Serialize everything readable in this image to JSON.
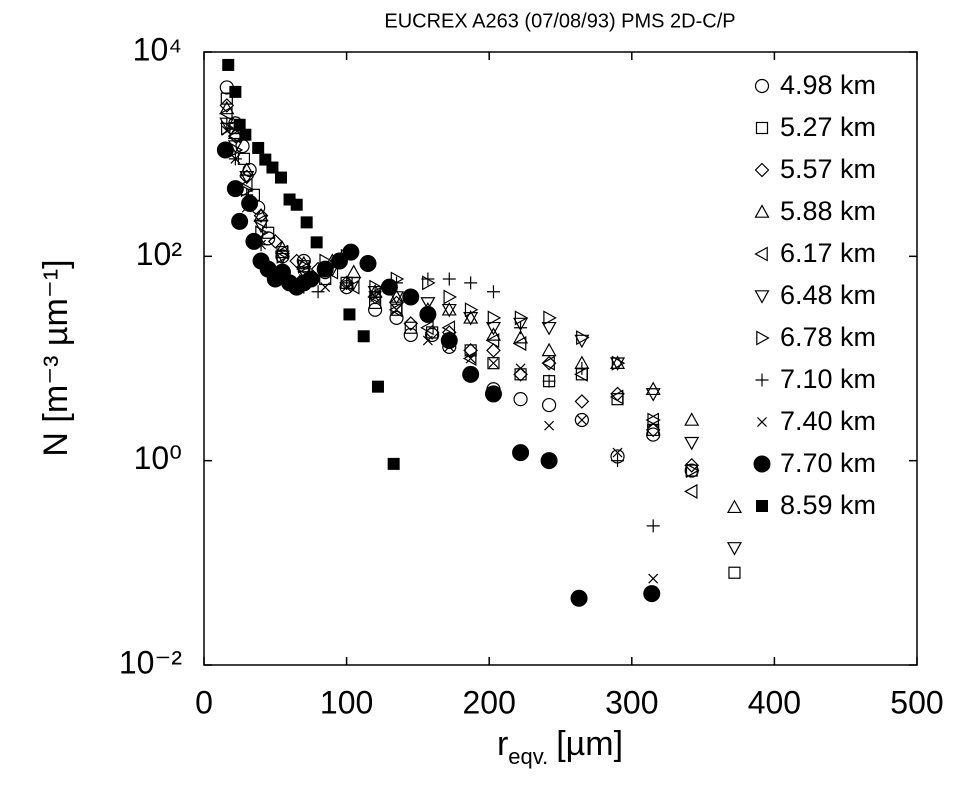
{
  "chart_data": {
    "type": "scatter",
    "title": "EUCREX A263 (07/08/93) PMS 2D-C/P",
    "x_label": {
      "text": "r",
      "subscript": "eqv.",
      "unit": "[µm]"
    },
    "y_label": "N [m⁻³ µm⁻¹]",
    "xlim": [
      0,
      500
    ],
    "xticks": [
      0,
      100,
      200,
      300,
      400,
      500
    ],
    "ylim": [
      0.01,
      10000
    ],
    "yticks": [
      {
        "value": 0.01,
        "label": "10⁻²"
      },
      {
        "value": 1,
        "label": "10⁰"
      },
      {
        "value": 100,
        "label": "10²"
      },
      {
        "value": 10000,
        "label": "10⁴"
      }
    ],
    "log_y": true,
    "grid": false,
    "legend": "upper right",
    "series": [
      {
        "name": "4.98 km",
        "marker": "circle-open",
        "color": "#000000",
        "x": [
          16,
          22,
          27,
          32,
          38,
          45,
          55,
          70,
          85,
          100,
          120,
          135,
          145,
          160,
          172,
          187,
          203,
          222,
          242,
          265,
          290,
          315,
          342
        ],
        "values": [
          4500,
          2000,
          1200,
          700,
          300,
          150,
          100,
          90,
          70,
          50,
          30,
          25,
          17,
          17,
          13,
          7,
          5,
          4,
          3.5,
          2.5,
          1.1,
          1.8,
          0.8
        ]
      },
      {
        "name": "5.27 km",
        "marker": "square-open",
        "color": "#000000",
        "x": [
          16,
          22,
          28,
          35,
          45,
          55,
          70,
          85,
          100,
          120,
          135,
          145,
          160,
          172,
          187,
          203,
          222,
          242,
          265,
          290,
          315,
          342,
          372
        ],
        "values": [
          3500,
          1800,
          900,
          400,
          170,
          110,
          80,
          60,
          55,
          35,
          30,
          20,
          18,
          15,
          12,
          9,
          7,
          6,
          7,
          4,
          2,
          0.8,
          0.08
        ]
      },
      {
        "name": "5.57 km",
        "marker": "diamond-open",
        "color": "#000000",
        "x": [
          16,
          22,
          30,
          40,
          50,
          65,
          80,
          100,
          120,
          135,
          145,
          160,
          172,
          187,
          203,
          222,
          242,
          265,
          290,
          315,
          342
        ],
        "values": [
          3000,
          1500,
          600,
          250,
          140,
          90,
          75,
          55,
          40,
          35,
          22,
          18,
          18,
          12,
          12,
          7,
          9,
          3.8,
          4.5,
          2,
          0.9
        ]
      },
      {
        "name": "5.88 km",
        "marker": "triangle-up-open",
        "color": "#000000",
        "x": [
          16,
          22,
          30,
          40,
          55,
          70,
          90,
          105,
          120,
          135,
          157,
          172,
          187,
          203,
          222,
          242,
          265,
          290,
          315,
          342,
          372
        ],
        "values": [
          2800,
          1600,
          700,
          250,
          120,
          85,
          90,
          70,
          45,
          40,
          30,
          30,
          25,
          17,
          16,
          12,
          9,
          9,
          5,
          2.5,
          0.35
        ]
      },
      {
        "name": "6.17 km",
        "marker": "triangle-left-open",
        "color": "#000000",
        "x": [
          16,
          22,
          30,
          40,
          55,
          70,
          90,
          105,
          120,
          135,
          157,
          172,
          187,
          203,
          222,
          242,
          265,
          290,
          315,
          342
        ],
        "values": [
          2500,
          1500,
          500,
          220,
          110,
          75,
          70,
          50,
          40,
          30,
          20,
          20,
          10,
          15,
          14,
          9,
          7,
          4.2,
          2.5,
          0.5
        ]
      },
      {
        "name": "6.48 km",
        "marker": "triangle-down-open",
        "color": "#000000",
        "x": [
          16,
          22,
          30,
          40,
          55,
          70,
          90,
          105,
          120,
          135,
          157,
          172,
          187,
          203,
          222,
          242,
          265,
          290,
          315,
          342,
          372
        ],
        "values": [
          2000,
          1200,
          600,
          200,
          100,
          70,
          75,
          55,
          45,
          40,
          35,
          30,
          25,
          20,
          22,
          20,
          15,
          9,
          4.5,
          1.5,
          0.14
        ]
      },
      {
        "name": "6.78 km",
        "marker": "triangle-right-open",
        "color": "#000000",
        "x": [
          16,
          22,
          30,
          40,
          55,
          70,
          85,
          100,
          120,
          135,
          157,
          172,
          187,
          203,
          222,
          242,
          265,
          290,
          315,
          342
        ],
        "values": [
          1800,
          1100,
          450,
          170,
          100,
          80,
          90,
          100,
          50,
          60,
          55,
          40,
          30,
          25,
          25,
          25,
          16,
          9,
          2.5,
          0.8
        ]
      },
      {
        "name": "7.10 km",
        "marker": "plus",
        "color": "#000000",
        "x": [
          16,
          22,
          30,
          40,
          55,
          70,
          80,
          100,
          120,
          135,
          157,
          172,
          187,
          203,
          222,
          242,
          265,
          290,
          315
        ],
        "values": [
          2000,
          900,
          400,
          130,
          70,
          50,
          45,
          55,
          45,
          55,
          60,
          60,
          55,
          45,
          20,
          6,
          8,
          1,
          0.23
        ]
      },
      {
        "name": "7.40 km",
        "marker": "x",
        "color": "#000000",
        "x": [
          16,
          22,
          30,
          40,
          55,
          70,
          85,
          100,
          120,
          135,
          157,
          172,
          187,
          203,
          222,
          242,
          265,
          290,
          315
        ],
        "values": [
          1700,
          900,
          300,
          130,
          70,
          60,
          50,
          50,
          40,
          30,
          15,
          13,
          10,
          9,
          8,
          2.2,
          2.5,
          1.2,
          0.07
        ]
      },
      {
        "name": "7.70 km",
        "marker": "circle-filled",
        "color": "#000000",
        "x": [
          15,
          22,
          25,
          32,
          35,
          40,
          45,
          50,
          55,
          60,
          65,
          70,
          75,
          85,
          95,
          103,
          115,
          130,
          145,
          157,
          172,
          187,
          203,
          222,
          242,
          263,
          314
        ],
        "values": [
          1100,
          460,
          220,
          330,
          140,
          90,
          75,
          60,
          70,
          55,
          50,
          55,
          60,
          75,
          90,
          110,
          85,
          50,
          40,
          27,
          15,
          7,
          4.5,
          1.2,
          1.0,
          0.045,
          0.05
        ]
      },
      {
        "name": "8.59 km",
        "marker": "square-filled",
        "color": "#000000",
        "x": [
          17,
          22,
          25,
          29,
          38,
          43,
          48,
          54,
          60,
          65,
          72,
          79,
          102,
          112,
          122,
          133
        ],
        "values": [
          7470,
          4070,
          1940,
          1550,
          1150,
          885,
          740,
          590,
          360,
          320,
          215,
          137,
          27,
          16.5,
          5.3,
          0.93
        ]
      }
    ]
  }
}
